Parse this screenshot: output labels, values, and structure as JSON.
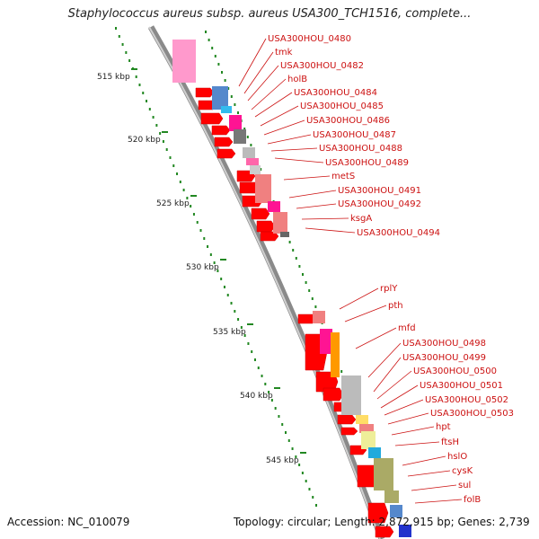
{
  "title": "Staphylococcus aureus subsp. aureus USA300_TCH1516, complete...",
  "footer": {
    "accession": "Accession: NC_010079",
    "topology": "Topology: circular; Length: 2,872,915 bp; Genes: 2,739"
  },
  "scale_labels": [
    "515 kbp",
    "520 kbp",
    "525 kbp",
    "530 kbp",
    "535 kbp",
    "540 kbp",
    "545 kbp"
  ],
  "gene_labels": [
    "USA300HOU_0480",
    "tmk",
    "USA300HOU_0482",
    "holB",
    "USA300HOU_0484",
    "USA300HOU_0485",
    "USA300HOU_0486",
    "USA300HOU_0487",
    "USA300HOU_0488",
    "USA300HOU_0489",
    "metS",
    "USA300HOU_0491",
    "USA300HOU_0492",
    "ksgA",
    "USA300HOU_0494",
    "rplY",
    "pth",
    "mfd",
    "USA300HOU_0498",
    "USA300HOU_0499",
    "USA300HOU_0500",
    "USA300HOU_0501",
    "USA300HOU_0502",
    "USA300HOU_0503",
    "hpt",
    "ftsH",
    "hslO",
    "cysK",
    "sul",
    "folB"
  ],
  "colors": {
    "label": "#cc1111",
    "arrow": "#ff0000",
    "backbone": "#999999",
    "scale": "#228822"
  }
}
